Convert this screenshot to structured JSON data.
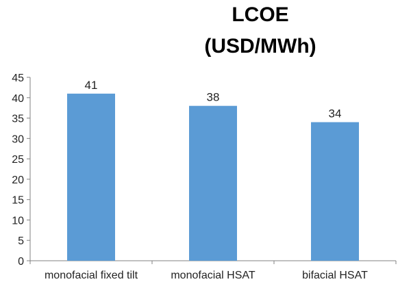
{
  "chart_data": {
    "type": "bar",
    "title_lines": [
      "LCOE",
      "(USD/MWh)"
    ],
    "categories": [
      "monofacial fixed tilt",
      "monofacial HSAT",
      "bifacial HSAT"
    ],
    "series": [
      {
        "values": [
          41,
          38,
          34
        ]
      }
    ],
    "data_labels": [
      "41",
      "38",
      "34"
    ],
    "ylim": [
      0,
      45
    ],
    "yticks": [
      0,
      5,
      10,
      15,
      20,
      25,
      30,
      35,
      40,
      45
    ],
    "xlabel": "",
    "ylabel": "",
    "grid": false,
    "legend": "none",
    "colors": {
      "bar": "#5b9bd5",
      "axis": "#808080",
      "text": "#222222"
    }
  }
}
